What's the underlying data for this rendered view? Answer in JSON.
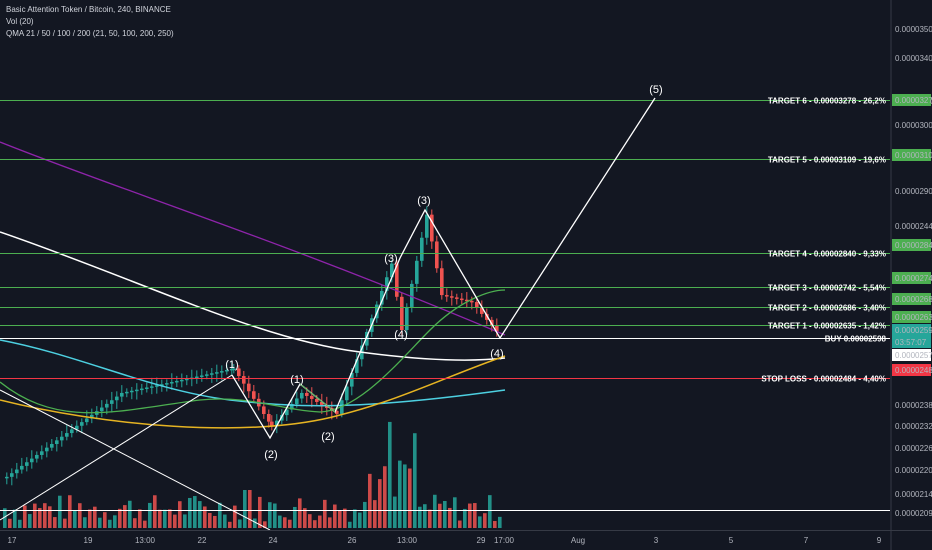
{
  "header": {
    "title": "Basic Attention Token / Bitcoin, 240, BINANCE",
    "vol_label": "Vol (20)",
    "qma_label": "QMA 21 / 50 / 100 / 200 (21, 50, 100, 200, 250)"
  },
  "colors": {
    "background": "#131722",
    "target_line": "#4caf50",
    "stop_line": "#f23645",
    "up_candle": "#26a69a",
    "down_candle": "#ef5350",
    "qma21": "#4caf50",
    "qma50": "#e6b422",
    "qma100": "#4dd0e1",
    "qma200": "#ffffff",
    "trend_purple": "#8e24aa"
  },
  "chart_data": {
    "type": "candlestick",
    "symbol": "Basic Attention Token / Bitcoin, 240, BINANCE",
    "y_range": [
      2.05e-05,
      3.55e-05
    ],
    "y_ticks": [
      "0.00003500",
      "0.00003400",
      "0.00003200",
      "0.00003000",
      "0.00002900",
      "0.00002440",
      "0.00002380",
      "0.00002320",
      "0.00002260",
      "0.00002200",
      "0.00002140",
      "0.00002091"
    ],
    "x_ticks": [
      "17",
      "19",
      "13:00",
      "22",
      "24",
      "26",
      "13:00",
      "29",
      "17:00",
      "Aug",
      "3",
      "5",
      "7",
      "9"
    ],
    "price_labels": [
      {
        "value": "0.00003278",
        "color": "#4caf50"
      },
      {
        "value": "0.00003109",
        "color": "#4caf50"
      },
      {
        "value": "0.00002840",
        "color": "#4caf50"
      },
      {
        "value": "0.00002742",
        "color": "#4caf50"
      },
      {
        "value": "0.00002686",
        "color": "#4caf50"
      },
      {
        "value": "0.00002635",
        "color": "#4caf50"
      },
      {
        "value": "0.00002595",
        "color": "#26a69a"
      },
      {
        "value": "03:57:07",
        "color": "#26a69a"
      },
      {
        "value": "0.00002575",
        "color": "#ffffff"
      },
      {
        "value": "0.00002484",
        "color": "#f23645"
      }
    ],
    "levels": [
      {
        "label": "TARGET 6 - 0.00003278 - 26,2%",
        "price": 3.278e-05,
        "kind": "target"
      },
      {
        "label": "TARGET 5 - 0.00003109 - 19,6%",
        "price": 3.109e-05,
        "kind": "target"
      },
      {
        "label": "TARGET 4 - 0.00002840 - 9,33%",
        "price": 2.84e-05,
        "kind": "target"
      },
      {
        "label": "TARGET 3 - 0.00002742 - 5,54%",
        "price": 2.742e-05,
        "kind": "target"
      },
      {
        "label": "TARGET 2 - 0.00002686 - 3,40%",
        "price": 2.686e-05,
        "kind": "target"
      },
      {
        "label": "TARGET 1 - 0.00002635 - 1,42%",
        "price": 2.635e-05,
        "kind": "target"
      },
      {
        "label": "BUY 0.00002598",
        "price": 2.598e-05,
        "kind": "buy"
      },
      {
        "label": "STOP LOSS - 0.00002484 - 4,40%",
        "price": 2.484e-05,
        "kind": "stop"
      }
    ],
    "wave_labels": [
      "(1)",
      "(2)",
      "(1)",
      "(2)",
      "(3)",
      "(4)",
      "(3)",
      "(4)",
      "(5)"
    ]
  }
}
